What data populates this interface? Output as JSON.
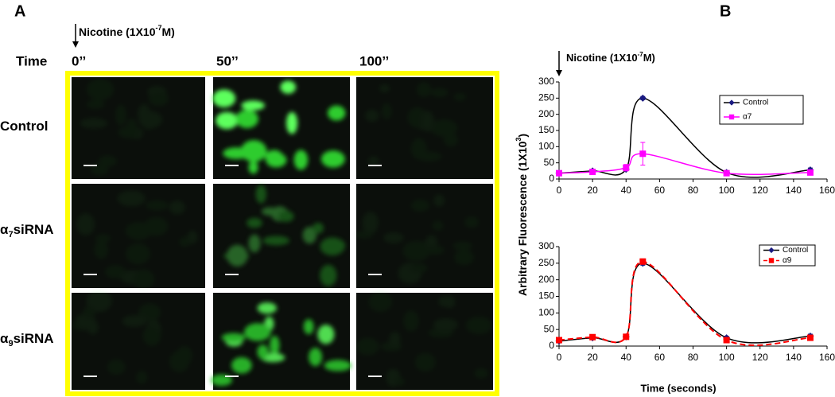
{
  "panel_a": {
    "label": "A",
    "treatment": [
      "Nicotine (1X10",
      "-7",
      "M)"
    ],
    "time_label": "Time",
    "columns": [
      "0’’",
      "50’’",
      "100’’"
    ],
    "rows": [
      [
        "Control"
      ],
      [
        "α",
        "7",
        "siRNA"
      ],
      [
        "α",
        "9",
        "siRNA"
      ]
    ]
  },
  "panel_b": {
    "label": "B",
    "ylabel": [
      "Arbitrary  Fluorescence (1X10",
      "3",
      ")"
    ],
    "xlabel": "Time (seconds)",
    "annotation": [
      "Nicotine (1X10",
      "-7",
      "M)"
    ]
  },
  "chart_data": [
    {
      "type": "line",
      "x": [
        0,
        20,
        40,
        50,
        100,
        150
      ],
      "series": [
        {
          "name": "Control",
          "color": "#000000",
          "marker_color": "#1a1a80",
          "marker": "diamond",
          "values": [
            18,
            25,
            30,
            250,
            20,
            28
          ],
          "errors": [
            4,
            5,
            4,
            5,
            5,
            6
          ]
        },
        {
          "name": "α7",
          "color": "#ff00ff",
          "marker_color": "#ff00ff",
          "marker": "square",
          "values": [
            18,
            22,
            35,
            78,
            18,
            20
          ],
          "errors": [
            4,
            4,
            10,
            35,
            4,
            4
          ]
        }
      ],
      "xlim": [
        0,
        160
      ],
      "xticks": [
        0,
        20,
        40,
        60,
        80,
        100,
        120,
        140,
        160
      ],
      "ylim": [
        0,
        300
      ],
      "yticks": [
        0,
        50,
        100,
        150,
        200,
        250,
        300
      ],
      "legend": "upper right"
    },
    {
      "type": "line",
      "x": [
        0,
        20,
        40,
        50,
        100,
        150
      ],
      "series": [
        {
          "name": "Control",
          "color": "#000000",
          "marker_color": "#1a1a80",
          "marker": "diamond",
          "values": [
            15,
            25,
            28,
            250,
            25,
            30
          ],
          "errors": [
            4,
            5,
            4,
            6,
            5,
            6
          ]
        },
        {
          "name": "α9",
          "color": "#ff0000",
          "marker_color": "#ff0000",
          "marker": "square",
          "dashed": true,
          "values": [
            18,
            27,
            28,
            255,
            18,
            25
          ],
          "errors": [
            4,
            5,
            4,
            8,
            4,
            5
          ]
        }
      ],
      "xlim": [
        0,
        160
      ],
      "xticks": [
        0,
        20,
        40,
        60,
        80,
        100,
        120,
        140,
        160
      ],
      "ylim": [
        0,
        300
      ],
      "yticks": [
        0,
        50,
        100,
        150,
        200,
        250,
        300
      ],
      "legend": "upper right"
    }
  ]
}
